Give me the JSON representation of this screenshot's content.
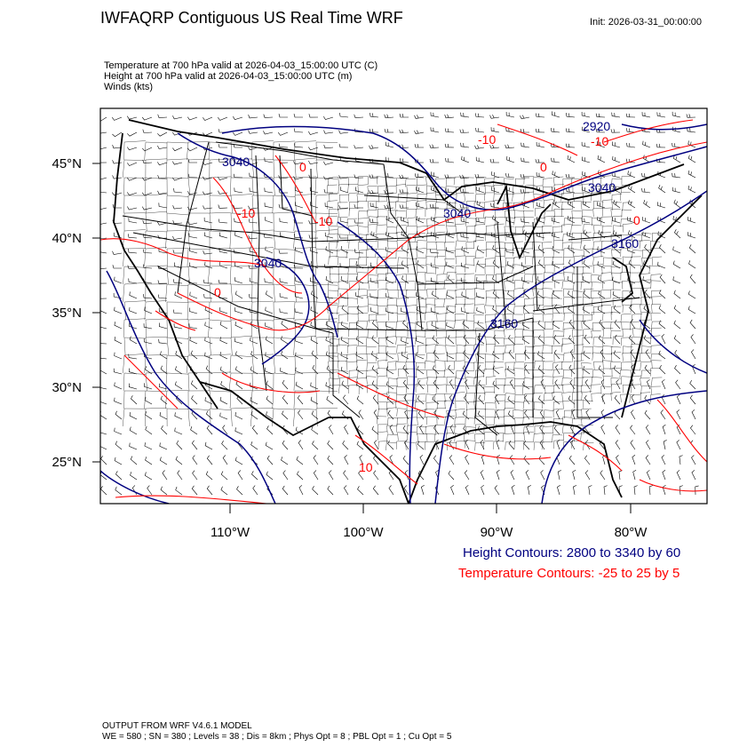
{
  "header": {
    "title": "IWFAQRP Contiguous US Real Time WRF",
    "init": "Init: 2026-03-31_00:00:00"
  },
  "subtitles": {
    "temperature": "Temperature at 700 hPa valid at 2026-04-03_15:00:00 UTC   (C)",
    "height": "Height at 700 hPa valid at 2026-04-03_15:00:00 UTC   (m)",
    "winds": "Winds   (kts)"
  },
  "map": {
    "projection": "lambert-conformal",
    "colors": {
      "height": "#000080",
      "temperature": "#ff0000",
      "boundaries": "#000000"
    },
    "latitude_labels": [
      "45°N",
      "40°N",
      "35°N",
      "30°N",
      "25°N"
    ],
    "longitude_labels": [
      "110°W",
      "100°W",
      "90°W",
      "80°W"
    ],
    "height_contour_labels": [
      "2920",
      "3040",
      "3040",
      "3040",
      "3040",
      "3160",
      "3160"
    ],
    "temperature_contour_labels": [
      "-10",
      "0",
      "-10",
      "-10",
      "-10",
      "0",
      "0",
      "0",
      "10"
    ]
  },
  "legend": {
    "height": "Height Contours: 2800 to 3340 by 60",
    "temperature": "Temperature Contours: -25 to 25 by 5"
  },
  "footer": {
    "line1": "OUTPUT FROM WRF V4.6.1 MODEL",
    "line2": "WE = 580 ; SN = 380 ; Levels = 38 ; Dis = 8km ; Phys Opt = 8 ; PBL Opt = 1 ; Cu Opt = 5"
  }
}
